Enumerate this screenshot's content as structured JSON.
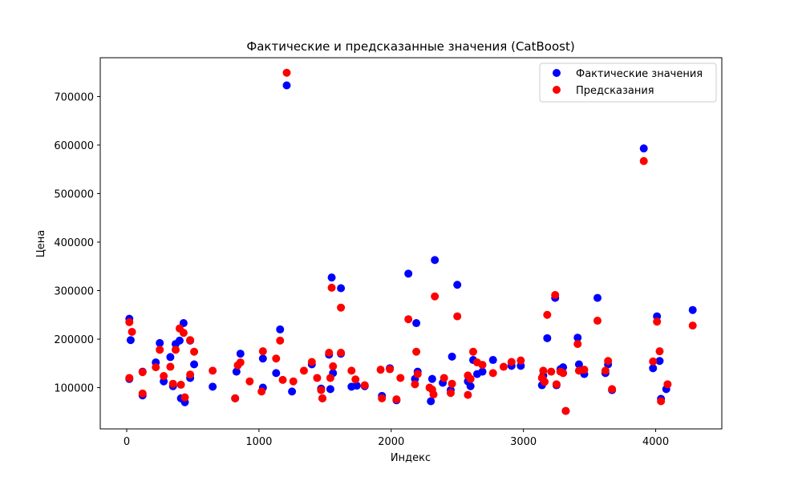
{
  "chart_data": {
    "type": "scatter",
    "title": "Фактические и предсказанные значения (CatBoost)",
    "xlabel": "Индекс",
    "ylabel": "Цена",
    "xlim": [
      -200,
      4500
    ],
    "ylim": [
      15000,
      780000
    ],
    "x_ticks": [
      0,
      1000,
      2000,
      3000,
      4000
    ],
    "y_ticks": [
      100000,
      200000,
      300000,
      400000,
      500000,
      600000,
      700000
    ],
    "grid": false,
    "legend_position": "top-right",
    "series": [
      {
        "name": "Фактические значения",
        "color": "#0000ff",
        "points": [
          [
            20,
            242000
          ],
          [
            20,
            118000
          ],
          [
            30,
            198000
          ],
          [
            120,
            84000
          ],
          [
            120,
            133000
          ],
          [
            220,
            152000
          ],
          [
            250,
            192000
          ],
          [
            280,
            113000
          ],
          [
            330,
            163000
          ],
          [
            350,
            103000
          ],
          [
            370,
            190000
          ],
          [
            400,
            197000
          ],
          [
            410,
            78000
          ],
          [
            430,
            233000
          ],
          [
            440,
            70000
          ],
          [
            480,
            197000
          ],
          [
            480,
            120000
          ],
          [
            510,
            148000
          ],
          [
            650,
            102000
          ],
          [
            820,
            78000
          ],
          [
            830,
            133000
          ],
          [
            860,
            170000
          ],
          [
            1030,
            100000
          ],
          [
            1030,
            160000
          ],
          [
            1130,
            130000
          ],
          [
            1160,
            220000
          ],
          [
            1210,
            723000
          ],
          [
            1250,
            92000
          ],
          [
            1400,
            148000
          ],
          [
            1470,
            98000
          ],
          [
            1480,
            78000
          ],
          [
            1530,
            168000
          ],
          [
            1540,
            97000
          ],
          [
            1550,
            327000
          ],
          [
            1560,
            130000
          ],
          [
            1620,
            305000
          ],
          [
            1620,
            170000
          ],
          [
            1700,
            102000
          ],
          [
            1740,
            104000
          ],
          [
            1800,
            103000
          ],
          [
            1930,
            83000
          ],
          [
            1990,
            140000
          ],
          [
            2040,
            74000
          ],
          [
            2130,
            335000
          ],
          [
            2180,
            118000
          ],
          [
            2190,
            233000
          ],
          [
            2200,
            133000
          ],
          [
            2300,
            72000
          ],
          [
            2310,
            118000
          ],
          [
            2330,
            363000
          ],
          [
            2390,
            110000
          ],
          [
            2450,
            95000
          ],
          [
            2460,
            164000
          ],
          [
            2500,
            312000
          ],
          [
            2580,
            113000
          ],
          [
            2600,
            103000
          ],
          [
            2620,
            157000
          ],
          [
            2650,
            128000
          ],
          [
            2690,
            133000
          ],
          [
            2770,
            157000
          ],
          [
            2910,
            145000
          ],
          [
            2980,
            145000
          ],
          [
            3140,
            105000
          ],
          [
            3150,
            125000
          ],
          [
            3180,
            202000
          ],
          [
            3240,
            285000
          ],
          [
            3250,
            105000
          ],
          [
            3280,
            138000
          ],
          [
            3300,
            142000
          ],
          [
            3320,
            52000
          ],
          [
            3410,
            203000
          ],
          [
            3420,
            148000
          ],
          [
            3460,
            128000
          ],
          [
            3560,
            285000
          ],
          [
            3620,
            130000
          ],
          [
            3640,
            148000
          ],
          [
            3670,
            95000
          ],
          [
            3910,
            593000
          ],
          [
            3980,
            140000
          ],
          [
            4010,
            247000
          ],
          [
            4030,
            155000
          ],
          [
            4040,
            77000
          ],
          [
            4080,
            97000
          ],
          [
            4280,
            260000
          ]
        ]
      },
      {
        "name": "Предсказания",
        "color": "#ff0000",
        "points": [
          [
            20,
            235000
          ],
          [
            20,
            120000
          ],
          [
            40,
            215000
          ],
          [
            120,
            132000
          ],
          [
            120,
            88000
          ],
          [
            220,
            142000
          ],
          [
            250,
            178000
          ],
          [
            280,
            124000
          ],
          [
            330,
            143000
          ],
          [
            350,
            108000
          ],
          [
            370,
            178000
          ],
          [
            400,
            222000
          ],
          [
            410,
            106000
          ],
          [
            430,
            213000
          ],
          [
            440,
            80000
          ],
          [
            480,
            198000
          ],
          [
            480,
            127000
          ],
          [
            510,
            174000
          ],
          [
            650,
            135000
          ],
          [
            820,
            78000
          ],
          [
            840,
            146000
          ],
          [
            860,
            152000
          ],
          [
            930,
            113000
          ],
          [
            1020,
            92000
          ],
          [
            1030,
            175000
          ],
          [
            1130,
            160000
          ],
          [
            1160,
            197000
          ],
          [
            1180,
            116000
          ],
          [
            1210,
            749000
          ],
          [
            1260,
            113000
          ],
          [
            1340,
            135000
          ],
          [
            1400,
            153000
          ],
          [
            1440,
            120000
          ],
          [
            1470,
            95000
          ],
          [
            1480,
            78000
          ],
          [
            1530,
            172000
          ],
          [
            1540,
            120000
          ],
          [
            1550,
            306000
          ],
          [
            1560,
            144000
          ],
          [
            1620,
            265000
          ],
          [
            1620,
            172000
          ],
          [
            1700,
            135000
          ],
          [
            1730,
            117000
          ],
          [
            1800,
            105000
          ],
          [
            1920,
            137000
          ],
          [
            1930,
            78000
          ],
          [
            1990,
            138000
          ],
          [
            2040,
            76000
          ],
          [
            2070,
            120000
          ],
          [
            2130,
            241000
          ],
          [
            2180,
            107000
          ],
          [
            2190,
            174000
          ],
          [
            2200,
            128000
          ],
          [
            2290,
            100000
          ],
          [
            2310,
            96000
          ],
          [
            2320,
            86000
          ],
          [
            2330,
            288000
          ],
          [
            2400,
            120000
          ],
          [
            2450,
            89000
          ],
          [
            2460,
            108000
          ],
          [
            2500,
            247000
          ],
          [
            2580,
            85000
          ],
          [
            2580,
            125000
          ],
          [
            2600,
            118000
          ],
          [
            2620,
            174000
          ],
          [
            2650,
            152000
          ],
          [
            2690,
            147000
          ],
          [
            2770,
            130000
          ],
          [
            2850,
            143000
          ],
          [
            2910,
            153000
          ],
          [
            2980,
            156000
          ],
          [
            3140,
            120000
          ],
          [
            3150,
            135000
          ],
          [
            3160,
            112000
          ],
          [
            3180,
            250000
          ],
          [
            3210,
            133000
          ],
          [
            3240,
            291000
          ],
          [
            3250,
            107000
          ],
          [
            3280,
            133000
          ],
          [
            3300,
            130000
          ],
          [
            3320,
            52000
          ],
          [
            3410,
            190000
          ],
          [
            3420,
            135000
          ],
          [
            3460,
            137000
          ],
          [
            3560,
            238000
          ],
          [
            3620,
            135000
          ],
          [
            3640,
            155000
          ],
          [
            3670,
            97000
          ],
          [
            3910,
            567000
          ],
          [
            3980,
            154000
          ],
          [
            4010,
            236000
          ],
          [
            4030,
            175000
          ],
          [
            4040,
            72000
          ],
          [
            4090,
            107000
          ],
          [
            4280,
            228000
          ]
        ]
      }
    ]
  }
}
